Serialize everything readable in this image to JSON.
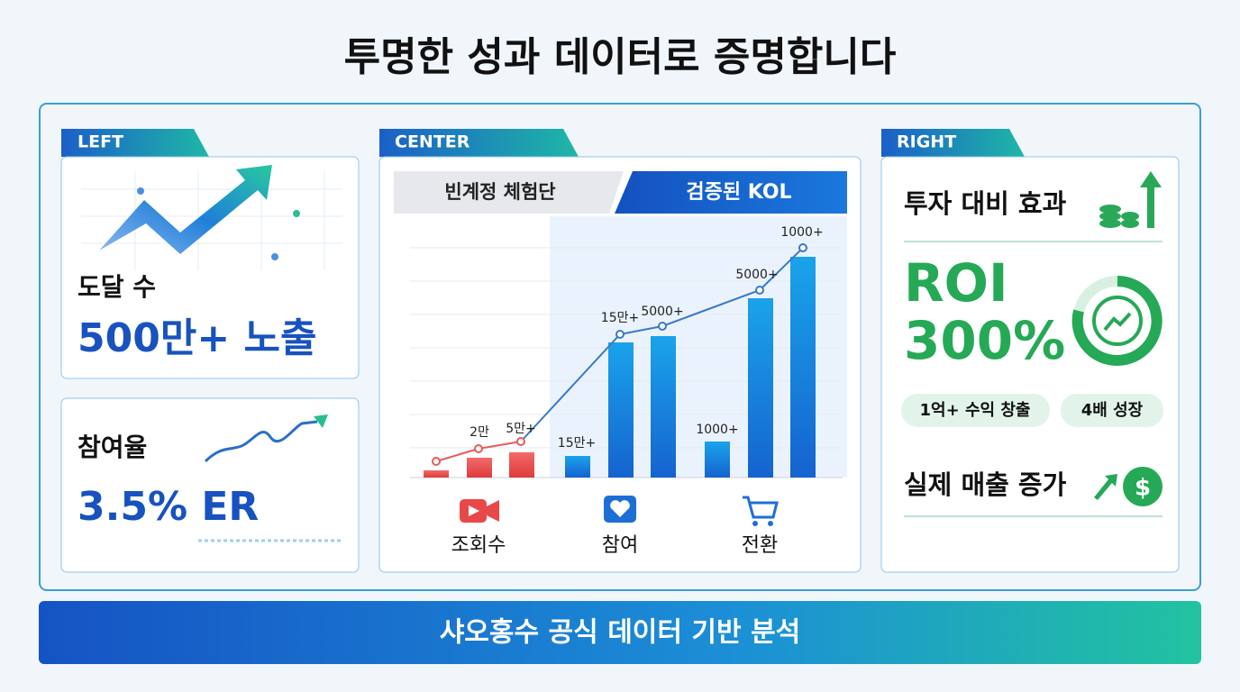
{
  "title": "투명한 성과 데이터로 증명합니다",
  "left": {
    "tag": "LEFT",
    "reach": {
      "label": "도달 수",
      "value": "500만+ 노출"
    },
    "engagement": {
      "label": "참여율",
      "value": "3.5% ER"
    }
  },
  "center": {
    "tag": "CENTER",
    "tabs": [
      "빈계정 체험단",
      "검증된 KOL"
    ],
    "point_labels": [
      "2만",
      "5만+",
      "15만+",
      "15만+",
      "5000+",
      "1000+",
      "5000+",
      "1000+"
    ],
    "categories": [
      "조회수",
      "참여",
      "전환"
    ]
  },
  "right": {
    "tag": "RIGHT",
    "heading": "투자 대비 효과",
    "roi_label": "ROI",
    "roi_value": "300%",
    "pills": [
      "1억+ 수익 창출",
      "4배 성장"
    ],
    "sales": "실제 매출 증가"
  },
  "footer": "샤오홍수 공식 데이터 기반 분석"
}
